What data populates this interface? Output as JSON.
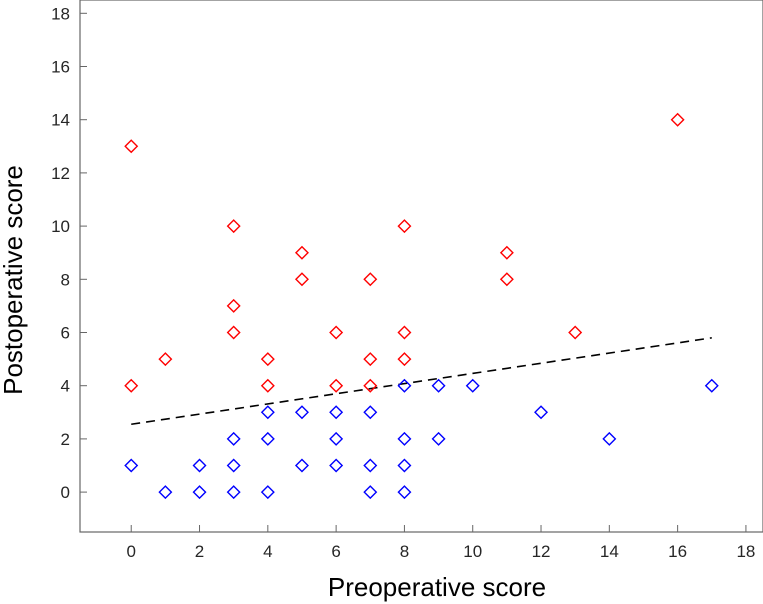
{
  "chart_data": {
    "type": "scatter",
    "title": "",
    "xlabel": "Preoperative score",
    "ylabel": "Postoperative score",
    "xlim": [
      -1.5,
      18.5
    ],
    "ylim": [
      -1.5,
      18.5
    ],
    "xticks": [
      0,
      2,
      4,
      6,
      8,
      10,
      12,
      14,
      16,
      18
    ],
    "yticks": [
      0,
      2,
      4,
      6,
      8,
      10,
      12,
      14,
      16,
      18
    ],
    "grid": false,
    "marker": "diamond-open",
    "series": [
      {
        "color": "#ff0000",
        "points": [
          [
            0,
            13
          ],
          [
            0,
            4
          ],
          [
            1,
            5
          ],
          [
            3,
            10
          ],
          [
            3,
            7
          ],
          [
            3,
            6
          ],
          [
            4,
            5
          ],
          [
            4,
            4
          ],
          [
            5,
            9
          ],
          [
            5,
            8
          ],
          [
            6,
            6
          ],
          [
            6,
            4
          ],
          [
            7,
            8
          ],
          [
            7,
            5
          ],
          [
            7,
            4
          ],
          [
            8,
            10
          ],
          [
            8,
            6
          ],
          [
            8,
            5
          ],
          [
            11,
            9
          ],
          [
            11,
            8
          ],
          [
            13,
            6
          ],
          [
            16,
            14
          ]
        ]
      },
      {
        "color": "#0000ff",
        "points": [
          [
            0,
            1
          ],
          [
            1,
            0
          ],
          [
            2,
            1
          ],
          [
            2,
            0
          ],
          [
            3,
            2
          ],
          [
            3,
            1
          ],
          [
            3,
            0
          ],
          [
            4,
            3
          ],
          [
            4,
            2
          ],
          [
            4,
            0
          ],
          [
            5,
            3
          ],
          [
            5,
            1
          ],
          [
            6,
            3
          ],
          [
            6,
            2
          ],
          [
            6,
            1
          ],
          [
            7,
            3
          ],
          [
            7,
            1
          ],
          [
            7,
            0
          ],
          [
            8,
            4
          ],
          [
            8,
            2
          ],
          [
            8,
            1
          ],
          [
            8,
            0
          ],
          [
            9,
            4
          ],
          [
            9,
            2
          ],
          [
            10,
            4
          ],
          [
            12,
            3
          ],
          [
            14,
            2
          ],
          [
            17,
            4
          ]
        ]
      }
    ],
    "trendline": {
      "style": "dashed",
      "color": "#000000",
      "x": [
        0,
        17
      ],
      "y": [
        2.55,
        5.8
      ]
    }
  }
}
